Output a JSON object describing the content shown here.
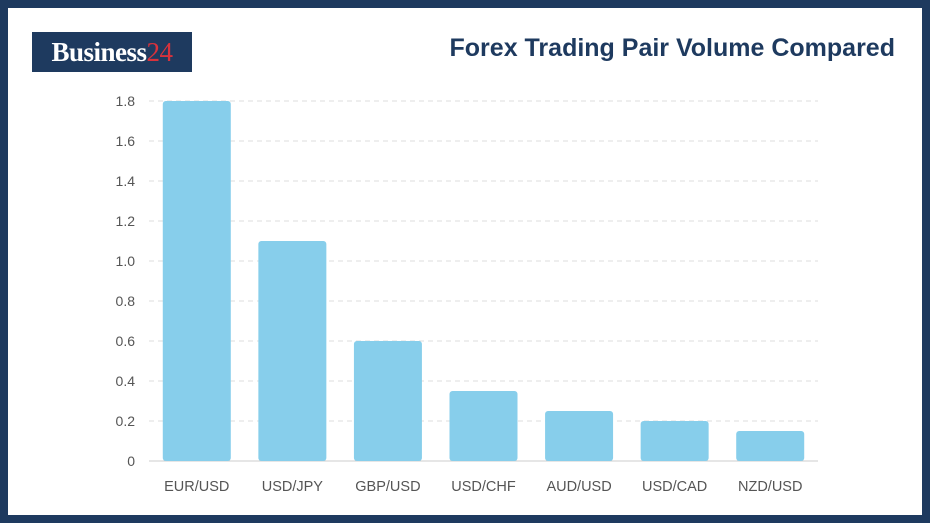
{
  "logo": {
    "text": "Business",
    "number": "24"
  },
  "chart_data": {
    "type": "bar",
    "title": "Forex Trading Pair Volume Compared",
    "xlabel": "",
    "ylabel": "",
    "categories": [
      "EUR/USD",
      "USD/JPY",
      "GBP/USD",
      "USD/CHF",
      "AUD/USD",
      "USD/CAD",
      "NZD/USD"
    ],
    "values": [
      1.8,
      1.1,
      0.6,
      0.35,
      0.25,
      0.2,
      0.15
    ],
    "ylim": [
      0,
      1.8
    ],
    "yticks": [
      "0",
      "0.2",
      "0.4",
      "0.6",
      "0.8",
      "1.0",
      "1.2",
      "1.4",
      "1.6",
      "1.8"
    ],
    "grid": true,
    "legend": "none",
    "bar_color": "#87ceeb"
  }
}
